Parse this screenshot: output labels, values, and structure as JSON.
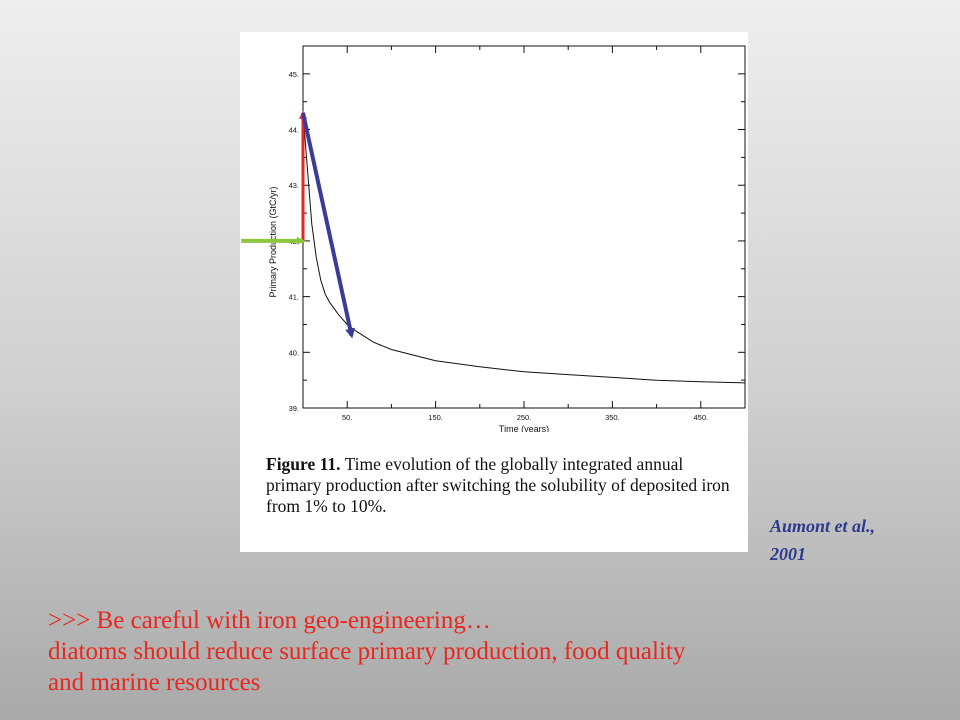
{
  "figure": {
    "caption_label": "Figure 11.",
    "caption_text": "  Time evolution of the globally integrated annual primary production after switching the solubility of deposited iron from 1% to 10%."
  },
  "citation": {
    "line1": "Aumont et al.,",
    "line2": "2001"
  },
  "conclusion": {
    "line1": ">>> Be careful with iron geo-engineering…",
    "line2": "diatoms should reduce surface primary production, food quality",
    "line3": "and marine resources"
  },
  "colors": {
    "annotation_red": "#e8271f",
    "annotation_blue": "#3b3b9a",
    "annotation_green": "#8cc63f",
    "citation_blue": "#2b3a8c"
  },
  "chart_data": {
    "type": "line",
    "xlabel": "Time (years)",
    "ylabel": "Primary Production (GtC/yr)",
    "xlim": [
      0,
      500
    ],
    "ylim": [
      39,
      45.5
    ],
    "x_ticks": [
      50,
      150,
      250,
      350,
      450
    ],
    "x_tick_labels": [
      "50.",
      "150.",
      "250.",
      "350.",
      "450."
    ],
    "y_ticks": [
      39,
      40,
      41,
      42,
      43,
      44,
      45
    ],
    "y_tick_labels": [
      "39.",
      "40.",
      "41.",
      "42.",
      "43.",
      "44.",
      "45."
    ],
    "series": [
      {
        "x": [
          0,
          5,
          10,
          15,
          20,
          25,
          30,
          40,
          50,
          60,
          80,
          100,
          150,
          200,
          250,
          300,
          350,
          400,
          450,
          500
        ],
        "y": [
          44.3,
          43.3,
          42.3,
          41.7,
          41.3,
          41.05,
          40.9,
          40.68,
          40.5,
          40.38,
          40.18,
          40.05,
          39.85,
          39.74,
          39.65,
          39.6,
          39.55,
          39.5,
          39.47,
          39.45
        ]
      }
    ],
    "annotations": [
      {
        "type": "arrow",
        "color": "red",
        "from": {
          "x": 0,
          "y": 42.0
        },
        "to": {
          "x": 0,
          "y": 44.3
        }
      },
      {
        "type": "arrow",
        "color": "blue",
        "from": {
          "x": 0,
          "y": 44.3
        },
        "to": {
          "x": 55,
          "y": 40.3
        }
      },
      {
        "type": "arrow",
        "color": "green",
        "from": {
          "x": -70,
          "y": 42.0
        },
        "to": {
          "x": 0,
          "y": 42.0
        }
      }
    ]
  }
}
